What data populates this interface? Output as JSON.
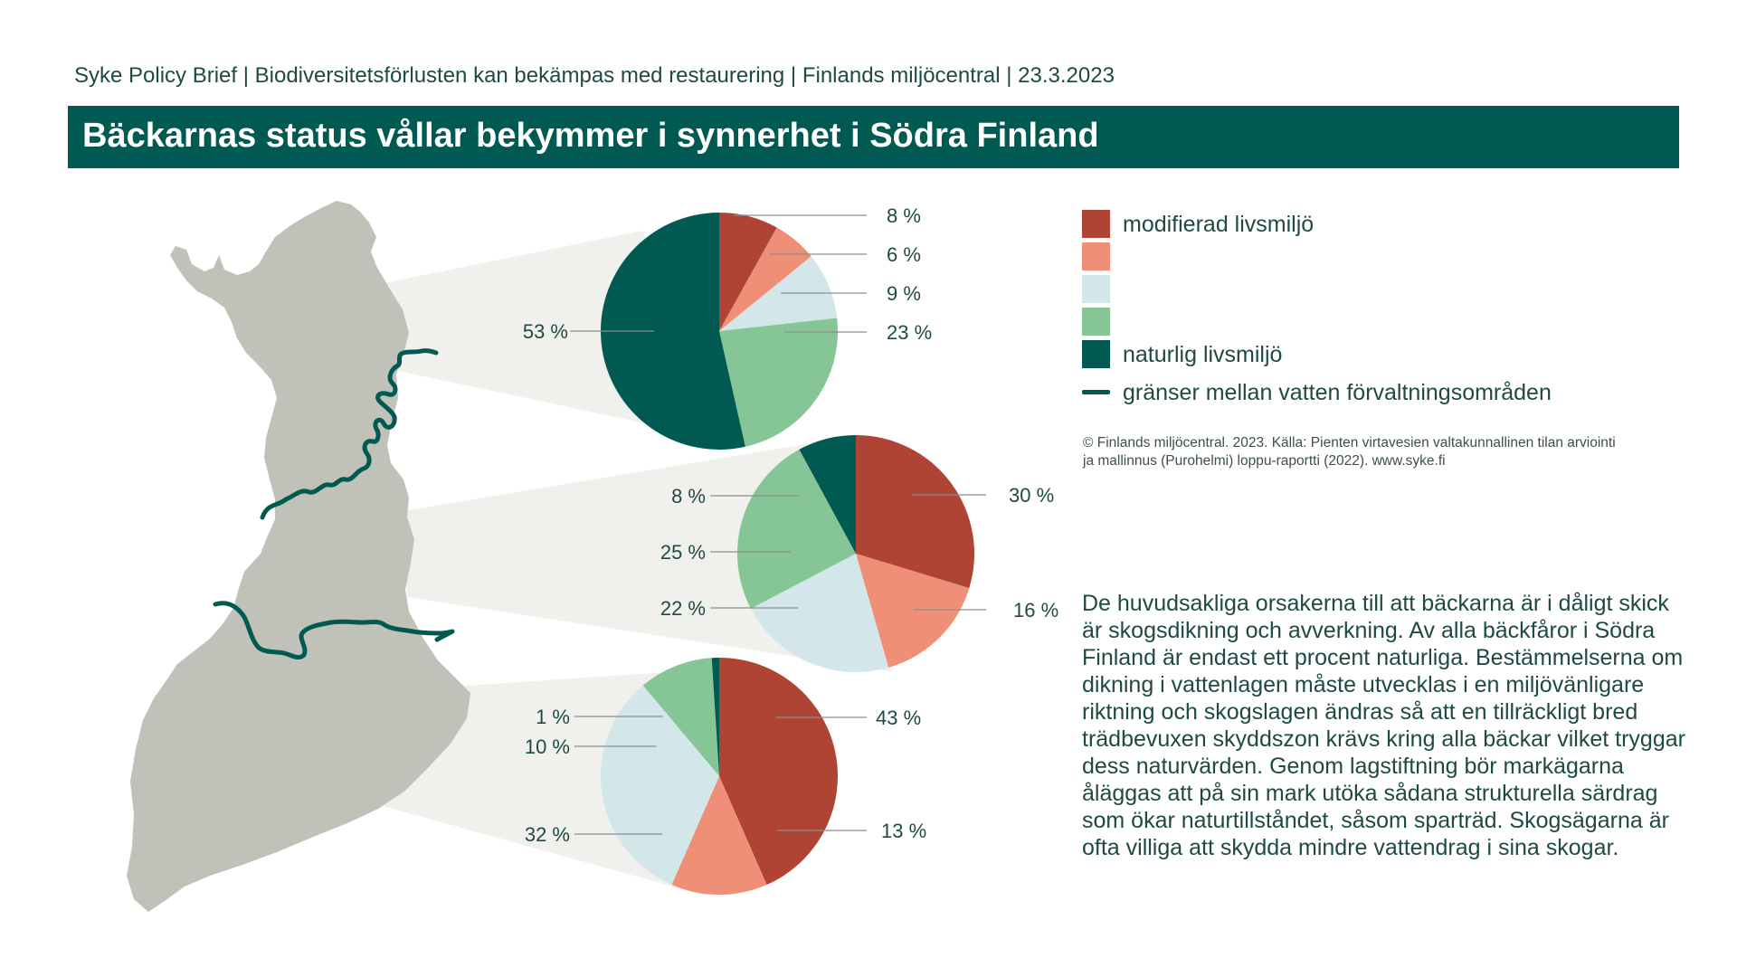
{
  "header": {
    "topline": "Syke Policy Brief  |  Biodiversitetsförlusten kan bekämpas med restaurering  |  Finlands miljöcentral  |  23.3.2023",
    "title": "Bäckarnas status vållar bekymmer i synnerhet i Södra Finland"
  },
  "legend": {
    "items": [
      {
        "label": "modifierad livsmiljö",
        "color": "#b04434"
      },
      {
        "label": "",
        "color": "#f08f78"
      },
      {
        "label": "",
        "color": "#d3e7ea"
      },
      {
        "label": "",
        "color": "#86c595"
      },
      {
        "label": "naturlig livsmiljö",
        "color": "#005a52"
      }
    ],
    "boundary_label": "gränser mellan vatten förvaltningsområden",
    "boundary_color": "#005a52"
  },
  "credit": "© Finlands miljöcentral. 2023. Källa: Pienten virtavesien valtakunnallinen tilan arviointi ja mallinnus (Purohelmi) loppu-raportti (2022). www.syke.fi",
  "body_text": "De huvudsakliga orsakerna till att bäckarna är i dåligt skick är skogsdikning och avverkning. Av alla bäckfåror i Södra Finland är endast ett procent naturliga. Bestämmelserna om dikning i vattenlagen måste utvecklas i en miljövänligare riktning och skogslagen ändras så att en tillräckligt bred trädbevuxen skyddszon krävs kring alla bäckar vilket tryggar dess naturvärden. Genom lagstiftning bör markägarna åläggas att på sin mark utöka sådana strukturella särdrag som ökar naturtillståndet, såsom sparträd. Skogsägarna är ofta villiga att skydda mindre vattendrag i sina skogar.",
  "map": {
    "fill": "#c0c1b9",
    "connector_fill": "#f0f0ed"
  },
  "chart_data": [
    {
      "type": "pie",
      "region": "north",
      "categories": [
        "modifierad livsmiljö",
        "",
        "",
        "",
        "naturlig livsmiljö"
      ],
      "values": [
        8,
        6,
        9,
        23,
        53
      ],
      "labels": [
        "8 %",
        "6 %",
        "9 %",
        "23 %",
        "53 %"
      ]
    },
    {
      "type": "pie",
      "region": "central",
      "categories": [
        "modifierad livsmiljö",
        "",
        "",
        "",
        "naturlig livsmiljö"
      ],
      "values": [
        30,
        16,
        22,
        25,
        8
      ],
      "labels": [
        "30 %",
        "16 %",
        "22 %",
        "25 %",
        "8 %"
      ]
    },
    {
      "type": "pie",
      "region": "south",
      "categories": [
        "modifierad livsmiljö",
        "",
        "",
        "",
        "naturlig livsmiljö"
      ],
      "values": [
        43,
        13,
        32,
        10,
        1
      ],
      "labels": [
        "43 %",
        "13 %",
        "32 %",
        "10 %",
        "1 %"
      ]
    }
  ]
}
